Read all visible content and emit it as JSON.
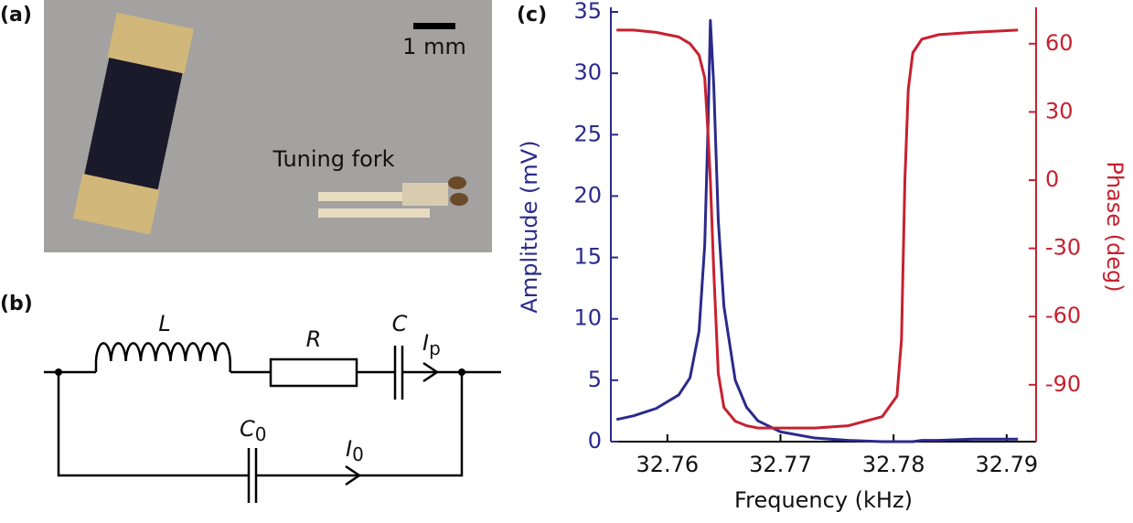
{
  "panels": {
    "a": {
      "label": "(a)",
      "scale_bar": "1 mm",
      "caption": "Tuning fork"
    },
    "b": {
      "label": "(b)",
      "circuit": {
        "inductor": "L",
        "resistor": "R",
        "capacitor": "C",
        "current_p": {
          "main": "I",
          "sub": "p"
        },
        "capacitor_0": {
          "main": "C",
          "sub": "0"
        },
        "current_0": {
          "main": "I",
          "sub": "0"
        }
      }
    },
    "c": {
      "label": "(c)"
    }
  },
  "chart_data": {
    "type": "line",
    "x_label": "Frequency (kHz)",
    "y_label": "Amplitude (mV)",
    "y2_label": "Phase (deg)",
    "x": [
      32.7555,
      32.757,
      32.759,
      32.761,
      32.762,
      32.7628,
      32.7633,
      32.7636,
      32.7638,
      32.7641,
      32.7645,
      32.765,
      32.766,
      32.767,
      32.768,
      32.77,
      32.773,
      32.776,
      32.779,
      32.7803,
      32.7807,
      32.781,
      32.7813,
      32.7817,
      32.7825,
      32.784,
      32.787,
      32.791
    ],
    "series": [
      {
        "name": "Amplitude",
        "color": "#2b2a8c",
        "values": [
          1.8,
          2.1,
          2.7,
          3.8,
          5.2,
          9,
          16,
          26,
          34.3,
          29,
          18,
          11,
          5,
          2.8,
          1.7,
          0.8,
          0.3,
          0.1,
          0.0,
          0.0,
          0.0,
          0.0,
          0.0,
          0.0,
          0.1,
          0.1,
          0.2,
          0.2
        ]
      },
      {
        "name": "Phase",
        "color": "#c8202f",
        "axis": "y2",
        "values": [
          66,
          66,
          65,
          63,
          60,
          55,
          45,
          20,
          0,
          -40,
          -85,
          -100,
          -106,
          -108,
          -109,
          -109,
          -109,
          -108,
          -104,
          -95,
          -70,
          0,
          40,
          56,
          62,
          64,
          65,
          66
        ]
      }
    ],
    "xlim": [
      32.755,
      32.7926
    ],
    "xticks": [
      32.76,
      32.77,
      32.78,
      32.79
    ],
    "ylim": [
      0,
      35
    ],
    "yticks": [
      0,
      5,
      10,
      15,
      20,
      25,
      30,
      35
    ],
    "y2lim": [
      -115,
      74
    ],
    "y2ticks": [
      -90,
      -60,
      -30,
      0,
      30,
      60
    ]
  }
}
